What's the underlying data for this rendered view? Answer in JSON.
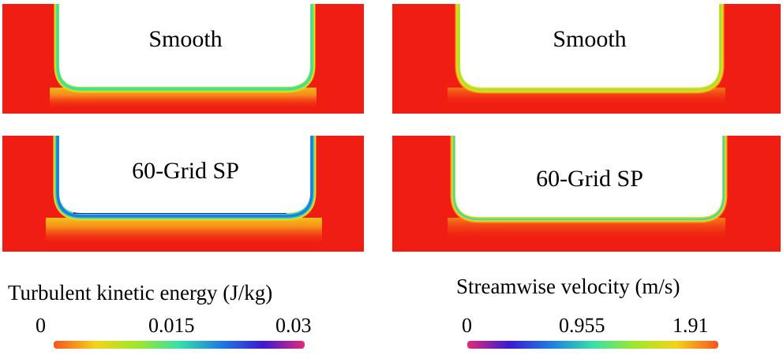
{
  "panels": {
    "tke_smooth": {
      "label": "Smooth"
    },
    "vel_smooth": {
      "label": "Smooth"
    },
    "tke_grid": {
      "label": "60-Grid SP"
    },
    "vel_grid": {
      "label": "60-Grid SP"
    }
  },
  "colorbars": {
    "tke": {
      "title": "Turbulent kinetic energy (J/kg)",
      "ticks": [
        "0",
        "0.015",
        "0.03"
      ]
    },
    "velocity": {
      "title": "Streamwise velocity (m/s)",
      "ticks": [
        "0",
        "0.955",
        "1.91"
      ]
    }
  },
  "colors": {
    "field_red": "#f01d12",
    "tke_gradient": [
      "#f7541e",
      "#f3d31a",
      "#9de82a",
      "#37e0a8",
      "#1f7ce3",
      "#3b1ad0",
      "#e22a7a"
    ],
    "vel_gradient": [
      "#e22a7a",
      "#3b1ad0",
      "#1f7ce3",
      "#37e0a8",
      "#9de82a",
      "#f3d31a",
      "#f7541e"
    ]
  }
}
